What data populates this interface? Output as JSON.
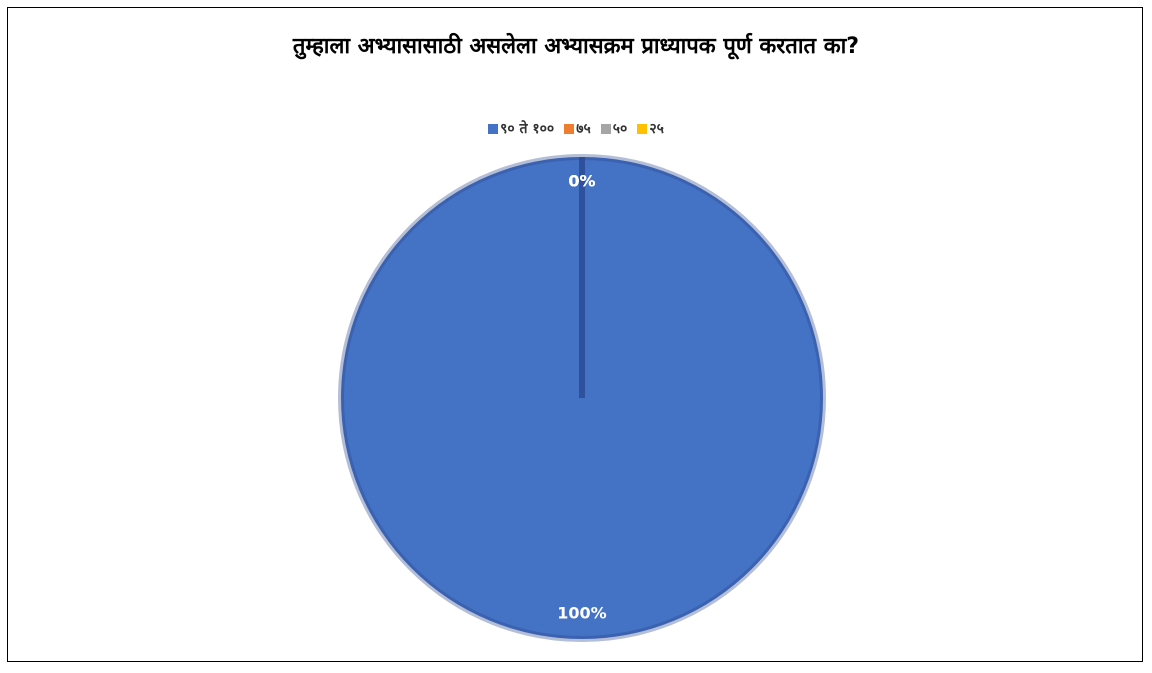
{
  "chart_data": {
    "type": "pie",
    "title": "तुम्हाला अभ्यासासाठी असलेला अभ्यासक्रम प्राध्यापक पूर्ण करतात का?",
    "categories": [
      "९० ते १००",
      "७५",
      "५०",
      "२५"
    ],
    "values": [
      100,
      0,
      0,
      0
    ],
    "value_labels": [
      "100%",
      "0%",
      "0%",
      "0%"
    ],
    "colors": [
      "#4472c4",
      "#ed7d31",
      "#a5a5a5",
      "#ffc000"
    ],
    "legend": "top"
  }
}
